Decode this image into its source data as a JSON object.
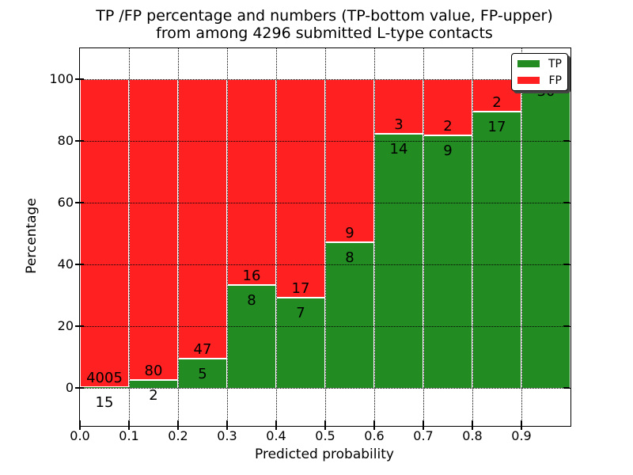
{
  "figure": {
    "title_line1": "TP /FP percentage and numbers (TP-bottom value, FP-upper)",
    "title_line2": "from among 4296 submitted L-type contacts",
    "xlabel": "Predicted probability",
    "ylabel": "Percentage"
  },
  "legend": {
    "position": "upper right",
    "items": [
      {
        "label": "TP",
        "series": "tp"
      },
      {
        "label": "FP",
        "series": "fp"
      }
    ]
  },
  "chart_data": {
    "type": "bar",
    "stacked": true,
    "normalized": "each bin stacked to 100%",
    "title": "TP /FP percentage and numbers (TP-bottom value, FP-upper) from among 4296 submitted L-type contacts",
    "xlabel": "Predicted probability",
    "ylabel": "Percentage",
    "total_contacts": 4296,
    "colors": {
      "tp": "#228B22",
      "fp": "#FF2121"
    },
    "xlim": [
      0.0,
      1.0
    ],
    "ylim": [
      -12,
      110
    ],
    "grid": "dotted",
    "x_tick_labels": [
      "0.0",
      "0.1",
      "0.2",
      "0.3",
      "0.4",
      "0.5",
      "0.6",
      "0.7",
      "0.8",
      "0.9"
    ],
    "y_ticks": [
      {
        "value": 0,
        "label": "0"
      },
      {
        "value": 20,
        "label": "20"
      },
      {
        "value": 40,
        "label": "40"
      },
      {
        "value": 60,
        "label": "60"
      },
      {
        "value": 80,
        "label": "80"
      },
      {
        "value": 100,
        "label": "100"
      }
    ],
    "bins": [
      {
        "range": "0.0-0.1",
        "tp": 15,
        "fp": 4005
      },
      {
        "range": "0.1-0.2",
        "tp": 2,
        "fp": 80
      },
      {
        "range": "0.2-0.3",
        "tp": 5,
        "fp": 47
      },
      {
        "range": "0.3-0.4",
        "tp": 8,
        "fp": 16
      },
      {
        "range": "0.4-0.5",
        "tp": 7,
        "fp": 17
      },
      {
        "range": "0.5-0.6",
        "tp": 8,
        "fp": 9
      },
      {
        "range": "0.6-0.7",
        "tp": 14,
        "fp": 3
      },
      {
        "range": "0.7-0.8",
        "tp": 9,
        "fp": 2
      },
      {
        "range": "0.8-0.9",
        "tp": 17,
        "fp": 2
      },
      {
        "range": "0.9-1.0",
        "tp": 30,
        "fp": 0
      }
    ]
  }
}
